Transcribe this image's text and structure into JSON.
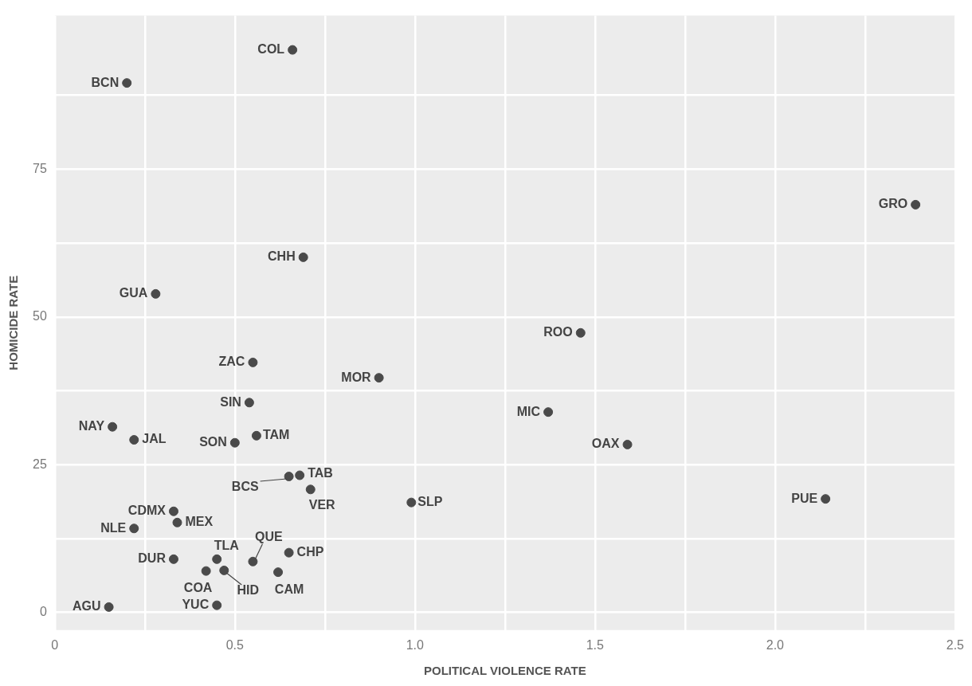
{
  "chart_data": {
    "type": "scatter",
    "xlabel": "POLITICAL VIOLENCE RATE",
    "ylabel": "HOMICIDE RATE",
    "xlim": [
      0,
      2.5
    ],
    "ylim": [
      -3,
      101
    ],
    "xticks": [
      0,
      {
        "value": 0.25,
        "label": null
      },
      0.5,
      {
        "value": 0.75,
        "label": null
      },
      {
        "value": 1,
        "label": "1.0"
      },
      {
        "value": 1.25,
        "label": null
      },
      1.5,
      {
        "value": 1.75,
        "label": null
      },
      {
        "value": 2,
        "label": "2.0"
      },
      {
        "value": 2.25,
        "label": null
      },
      2.5
    ],
    "yticks": [
      0,
      {
        "value": 12.5,
        "label": null
      },
      25,
      {
        "value": 37.5,
        "label": null
      },
      50,
      {
        "value": 62.5,
        "label": null
      },
      75,
      {
        "value": 87.5,
        "label": null
      }
    ],
    "grid": true,
    "marker": "circle",
    "series": [
      {
        "color": "#4a4a4a",
        "x": [
          0.2,
          0.66,
          2.39,
          0.69,
          0.28,
          1.46,
          0.55,
          0.9,
          0.54,
          1.37,
          0.16,
          0.22,
          0.5,
          0.56,
          1.59,
          0.65,
          0.68,
          0.71,
          0.99,
          2.14,
          0.33,
          0.34,
          0.22,
          0.55,
          0.65,
          0.45,
          0.33,
          0.42,
          0.47,
          0.62,
          0.15,
          0.45
        ],
        "values": [
          89.6,
          95.2,
          69.0,
          60.1,
          53.9,
          47.3,
          42.3,
          39.7,
          35.5,
          33.9,
          31.4,
          29.2,
          28.7,
          29.9,
          28.4,
          23.0,
          23.2,
          20.8,
          18.6,
          19.2,
          17.1,
          15.2,
          14.2,
          8.6,
          10.1,
          9.0,
          9.0,
          7.0,
          7.1,
          6.8,
          0.9,
          1.2
        ]
      }
    ],
    "annotations": [
      {
        "text": "BCN",
        "x": 0.2,
        "y": 89.6
      },
      {
        "text": "COL",
        "x": 0.66,
        "y": 95.2
      },
      {
        "text": "GRO",
        "x": 2.39,
        "y": 69.0
      },
      {
        "text": "CHH",
        "x": 0.69,
        "y": 60.1
      },
      {
        "text": "GUA",
        "x": 0.28,
        "y": 53.9
      },
      {
        "text": "ROO",
        "x": 1.46,
        "y": 47.3
      },
      {
        "text": "ZAC",
        "x": 0.55,
        "y": 42.3
      },
      {
        "text": "MOR",
        "x": 0.9,
        "y": 39.7
      },
      {
        "text": "SIN",
        "x": 0.54,
        "y": 35.5
      },
      {
        "text": "MIC",
        "x": 1.37,
        "y": 33.9
      },
      {
        "text": "NAY",
        "x": 0.16,
        "y": 31.4
      },
      {
        "text": "JAL",
        "x": 0.22,
        "y": 29.2
      },
      {
        "text": "SON",
        "x": 0.5,
        "y": 28.7
      },
      {
        "text": "TAM",
        "x": 0.56,
        "y": 29.9
      },
      {
        "text": "OAX",
        "x": 1.59,
        "y": 28.4
      },
      {
        "text": "BCS",
        "x": 0.65,
        "y": 23.0
      },
      {
        "text": "TAB",
        "x": 0.68,
        "y": 23.2
      },
      {
        "text": "VER",
        "x": 0.71,
        "y": 20.8
      },
      {
        "text": "SLP",
        "x": 0.99,
        "y": 18.6
      },
      {
        "text": "PUE",
        "x": 2.14,
        "y": 19.2
      },
      {
        "text": "CDMX",
        "x": 0.33,
        "y": 17.1
      },
      {
        "text": "MEX",
        "x": 0.34,
        "y": 15.2
      },
      {
        "text": "NLE",
        "x": 0.22,
        "y": 14.2
      },
      {
        "text": "QUE",
        "x": 0.55,
        "y": 8.6
      },
      {
        "text": "CHP",
        "x": 0.65,
        "y": 10.1
      },
      {
        "text": "TLA",
        "x": 0.45,
        "y": 9.0
      },
      {
        "text": "DUR",
        "x": 0.33,
        "y": 9.0
      },
      {
        "text": "COA",
        "x": 0.42,
        "y": 7.0
      },
      {
        "text": "HID",
        "x": 0.47,
        "y": 7.1
      },
      {
        "text": "CAM",
        "x": 0.62,
        "y": 6.8
      },
      {
        "text": "AGU",
        "x": 0.15,
        "y": 0.9
      },
      {
        "text": "YUC",
        "x": 0.45,
        "y": 1.2
      }
    ]
  }
}
